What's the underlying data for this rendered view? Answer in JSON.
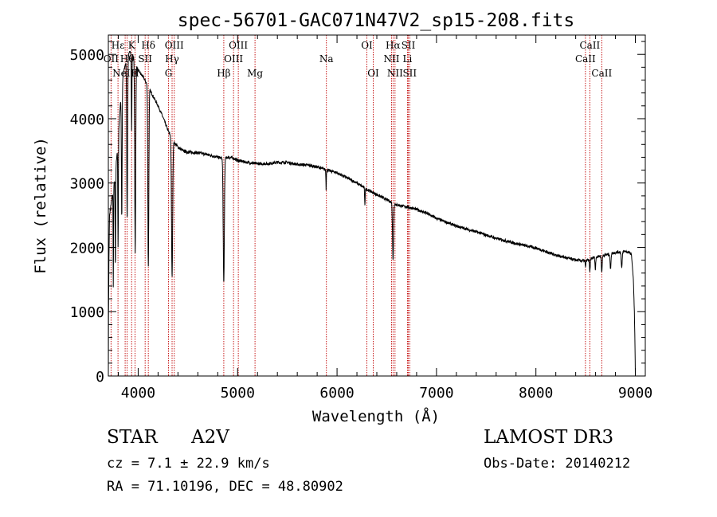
{
  "chart_data": {
    "type": "line",
    "title": "spec-56701-GAC071N47V2_sp15-208.fits",
    "xlabel": "Wavelength (Å)",
    "ylabel": "Flux (relative)",
    "xlim": [
      3700,
      9100
    ],
    "ylim": [
      0,
      5300
    ],
    "xticks": [
      4000,
      5000,
      6000,
      7000,
      8000,
      9000
    ],
    "yticks": [
      0,
      1000,
      2000,
      3000,
      4000,
      5000
    ],
    "grid": false,
    "continuum": [
      [
        3700,
        0
      ],
      [
        3702,
        900
      ],
      [
        3706,
        1800
      ],
      [
        3712,
        2500
      ],
      [
        3730,
        2700
      ],
      [
        3760,
        3000
      ],
      [
        3790,
        3500
      ],
      [
        3820,
        4200
      ],
      [
        3850,
        4700
      ],
      [
        3880,
        4900
      ],
      [
        3920,
        5050
      ],
      [
        3960,
        4950
      ],
      [
        4000,
        4750
      ],
      [
        4050,
        4650
      ],
      [
        4100,
        4500
      ],
      [
        4150,
        4350
      ],
      [
        4200,
        4200
      ],
      [
        4250,
        4020
      ],
      [
        4300,
        3820
      ],
      [
        4350,
        3650
      ],
      [
        4400,
        3560
      ],
      [
        4450,
        3500
      ],
      [
        4500,
        3480
      ],
      [
        4600,
        3470
      ],
      [
        4700,
        3440
      ],
      [
        4800,
        3400
      ],
      [
        4860,
        3380
      ],
      [
        4900,
        3400
      ],
      [
        4950,
        3390
      ],
      [
        5000,
        3350
      ],
      [
        5100,
        3320
      ],
      [
        5200,
        3300
      ],
      [
        5300,
        3300
      ],
      [
        5400,
        3320
      ],
      [
        5500,
        3320
      ],
      [
        5600,
        3290
      ],
      [
        5700,
        3280
      ],
      [
        5800,
        3250
      ],
      [
        5900,
        3200
      ],
      [
        6000,
        3160
      ],
      [
        6100,
        3080
      ],
      [
        6200,
        3000
      ],
      [
        6300,
        2900
      ],
      [
        6400,
        2820
      ],
      [
        6500,
        2740
      ],
      [
        6600,
        2660
      ],
      [
        6700,
        2630
      ],
      [
        6800,
        2590
      ],
      [
        6900,
        2530
      ],
      [
        7000,
        2450
      ],
      [
        7200,
        2330
      ],
      [
        7400,
        2240
      ],
      [
        7600,
        2140
      ],
      [
        7800,
        2060
      ],
      [
        8000,
        1990
      ],
      [
        8200,
        1880
      ],
      [
        8400,
        1800
      ],
      [
        8500,
        1790
      ],
      [
        8600,
        1850
      ],
      [
        8700,
        1880
      ],
      [
        8800,
        1920
      ],
      [
        8900,
        1940
      ],
      [
        8960,
        1900
      ],
      [
        8980,
        1500
      ],
      [
        8990,
        1000
      ],
      [
        8996,
        500
      ],
      [
        9000,
        0
      ]
    ],
    "absorption_lines": [
      {
        "wavelength": 3750,
        "depth": 1500,
        "width": 3
      },
      {
        "wavelength": 3771,
        "depth": 1500,
        "width": 4
      },
      {
        "wavelength": 3798,
        "depth": 1700,
        "width": 4
      },
      {
        "wavelength": 3835,
        "depth": 2000,
        "width": 5
      },
      {
        "wavelength": 3889,
        "depth": 2500,
        "width": 6
      },
      {
        "wavelength": 3934,
        "depth": 1200,
        "width": 4
      },
      {
        "wavelength": 3970,
        "depth": 3000,
        "width": 7
      },
      {
        "wavelength": 4102,
        "depth": 2800,
        "width": 7
      },
      {
        "wavelength": 4341,
        "depth": 2150,
        "width": 8
      },
      {
        "wavelength": 4861,
        "depth": 1950,
        "width": 8
      },
      {
        "wavelength": 5890,
        "depth": 300,
        "width": 3
      },
      {
        "wavelength": 6280,
        "depth": 250,
        "width": 4
      },
      {
        "wavelength": 6563,
        "depth": 900,
        "width": 7
      },
      {
        "wavelength": 8498,
        "depth": 100,
        "width": 4
      },
      {
        "wavelength": 8542,
        "depth": 200,
        "width": 5
      },
      {
        "wavelength": 8598,
        "depth": 200,
        "width": 5
      },
      {
        "wavelength": 8662,
        "depth": 250,
        "width": 6
      },
      {
        "wavelength": 8750,
        "depth": 250,
        "width": 6
      },
      {
        "wavelength": 8863,
        "depth": 250,
        "width": 7
      }
    ],
    "line_markers": [
      {
        "label": "Hε",
        "wavelength": 3797,
        "row": 1
      },
      {
        "label": "OII",
        "wavelength": 3727,
        "row": 2
      },
      {
        "label": "K",
        "wavelength": 3934,
        "row": 1
      },
      {
        "label": "Hθ",
        "wavelength": 3889,
        "row": 2
      },
      {
        "label": "NeIII",
        "wavelength": 3869,
        "row": 3
      },
      {
        "label": "H",
        "wavelength": 3968,
        "row": 3
      },
      {
        "label": "SII",
        "wavelength": 4070,
        "row": 2
      },
      {
        "label": "Hδ",
        "wavelength": 4102,
        "row": 1
      },
      {
        "label": "OIII",
        "wavelength": 4363,
        "row": 1
      },
      {
        "label": "Hγ",
        "wavelength": 4341,
        "row": 2
      },
      {
        "label": "G",
        "wavelength": 4305,
        "row": 3
      },
      {
        "label": "Hβ",
        "wavelength": 4861,
        "row": 3
      },
      {
        "label": "OIII",
        "wavelength": 5007,
        "row": 1
      },
      {
        "label": "OIII",
        "wavelength": 4959,
        "row": 2
      },
      {
        "label": "Mg",
        "wavelength": 5175,
        "row": 3
      },
      {
        "label": "Na",
        "wavelength": 5893,
        "row": 2
      },
      {
        "label": "OI",
        "wavelength": 6300,
        "row": 1
      },
      {
        "label": "OI",
        "wavelength": 6364,
        "row": 3
      },
      {
        "label": "Hα",
        "wavelength": 6563,
        "row": 1
      },
      {
        "label": "NII",
        "wavelength": 6548,
        "row": 2
      },
      {
        "label": "NII",
        "wavelength": 6583,
        "row": 3
      },
      {
        "label": "SII",
        "wavelength": 6717,
        "row": 1
      },
      {
        "label": "Li",
        "wavelength": 6708,
        "row": 2
      },
      {
        "label": "SII",
        "wavelength": 6731,
        "row": 3
      },
      {
        "label": "CaII",
        "wavelength": 8542,
        "row": 1
      },
      {
        "label": "CaII",
        "wavelength": 8498,
        "row": 2
      },
      {
        "label": "CaII",
        "wavelength": 8662,
        "row": 3
      }
    ],
    "colors": {
      "spectrum": "#000000",
      "marker": "#c00000",
      "axis": "#000000"
    }
  },
  "info": {
    "object_class": "STAR",
    "subclass": "A2V",
    "survey": "LAMOST DR3",
    "redshift": "cz = 7.1 ± 22.9 km/s",
    "obs_date": "Obs-Date: 20140212",
    "coords": "RA =  71.10196, DEC =  48.80902"
  }
}
